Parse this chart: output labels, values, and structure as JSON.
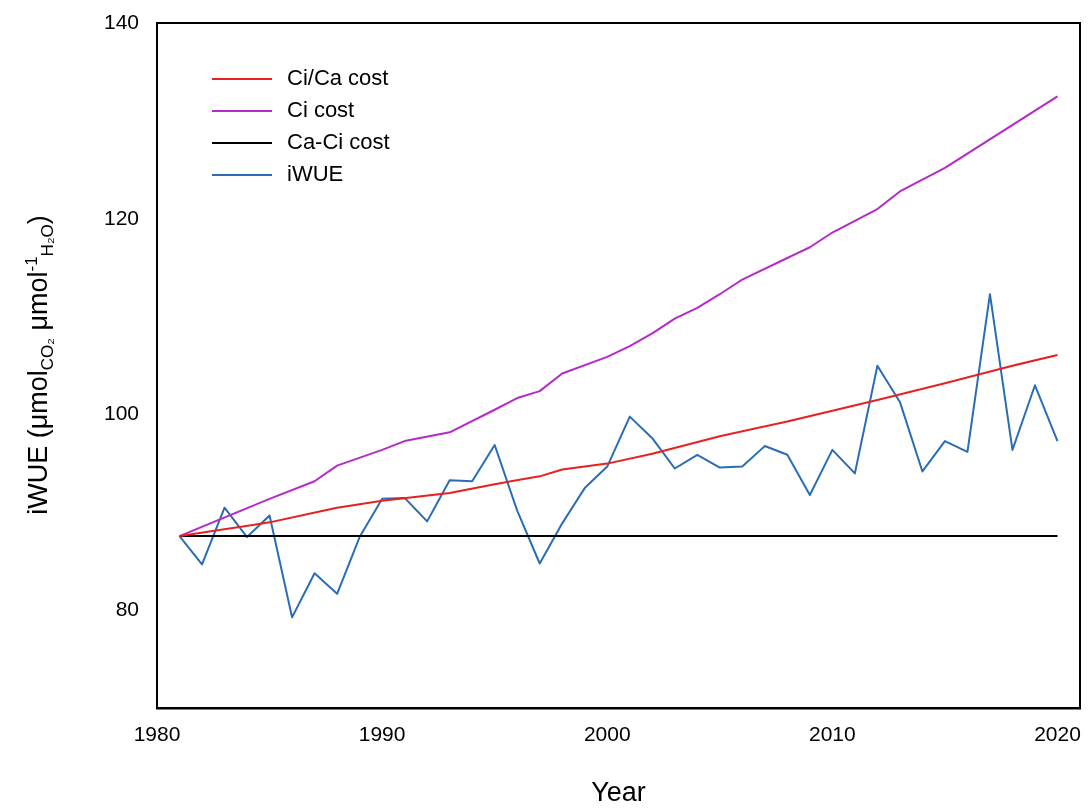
{
  "chart_data": {
    "type": "line",
    "xlabel": "Year",
    "ylabel": "iWUE (μmol$_{CO₂}$ μmol$^{-1}$$_{H₂O}$)",
    "xlim": [
      1980,
      2021
    ],
    "xticks": [
      1980,
      1990,
      2000,
      2010,
      2020
    ],
    "ylim": [
      70,
      140
    ],
    "yticks": [
      80,
      100,
      120,
      140
    ],
    "grid": false,
    "legend": "top left",
    "marker": "none",
    "line_style": "solid",
    "series": [
      {
        "name": "Ci/Ca cost",
        "color": "#e8201e",
        "x": [
          1981,
          1985,
          1988,
          1990,
          1993,
          1995,
          1997,
          1998,
          2000,
          2002,
          2005,
          2008,
          2010,
          2012,
          2015,
          2018,
          2020
        ],
        "values": [
          87.6,
          89.0,
          90.5,
          91.2,
          92.0,
          92.9,
          93.7,
          94.4,
          95.0,
          96.0,
          97.8,
          99.3,
          100.4,
          101.5,
          103.2,
          105.0,
          106.1
        ]
      },
      {
        "name": "Ci cost",
        "color": "#b52bc9",
        "x": [
          1981,
          1985,
          1987,
          1988,
          1990,
          1991,
          1993,
          1995,
          1996,
          1997,
          1998,
          2000,
          2001,
          2002,
          2003,
          2004,
          2005,
          2006,
          2008,
          2009,
          2010,
          2011,
          2012,
          2013,
          2015,
          2020
        ],
        "values": [
          87.6,
          91.4,
          93.2,
          94.8,
          96.4,
          97.3,
          98.2,
          100.5,
          101.7,
          102.4,
          104.2,
          105.9,
          107.0,
          108.3,
          109.8,
          110.9,
          112.3,
          113.8,
          116.0,
          117.1,
          118.6,
          119.8,
          121.0,
          122.8,
          125.2,
          132.5
        ]
      },
      {
        "name": "Ca-Ci cost",
        "color": "#000000",
        "x": [
          1981,
          2020
        ],
        "values": [
          87.6,
          87.6
        ]
      },
      {
        "name": "iWUE",
        "color": "#2a6db5",
        "x": [
          1981,
          1982,
          1983,
          1984,
          1985,
          1986,
          1987,
          1988,
          1989,
          1990,
          1991,
          1992,
          1993,
          1994,
          1995,
          1996,
          1997,
          1998,
          1999,
          2000,
          2001,
          2002,
          2003,
          2004,
          2005,
          2006,
          2007,
          2008,
          2009,
          2010,
          2011,
          2012,
          2013,
          2014,
          2015,
          2016,
          2017,
          2018,
          2019,
          2020
        ],
        "values": [
          87.6,
          84.7,
          90.5,
          87.5,
          89.7,
          79.3,
          83.8,
          81.7,
          87.5,
          91.4,
          91.5,
          89.1,
          93.3,
          93.2,
          96.9,
          90.2,
          84.8,
          88.9,
          92.5,
          94.7,
          99.8,
          97.6,
          94.5,
          95.9,
          94.6,
          94.7,
          96.8,
          95.9,
          91.8,
          96.4,
          94.0,
          105.0,
          101.3,
          94.2,
          97.3,
          96.2,
          112.3,
          96.4,
          103.0,
          97.3
        ]
      }
    ]
  }
}
